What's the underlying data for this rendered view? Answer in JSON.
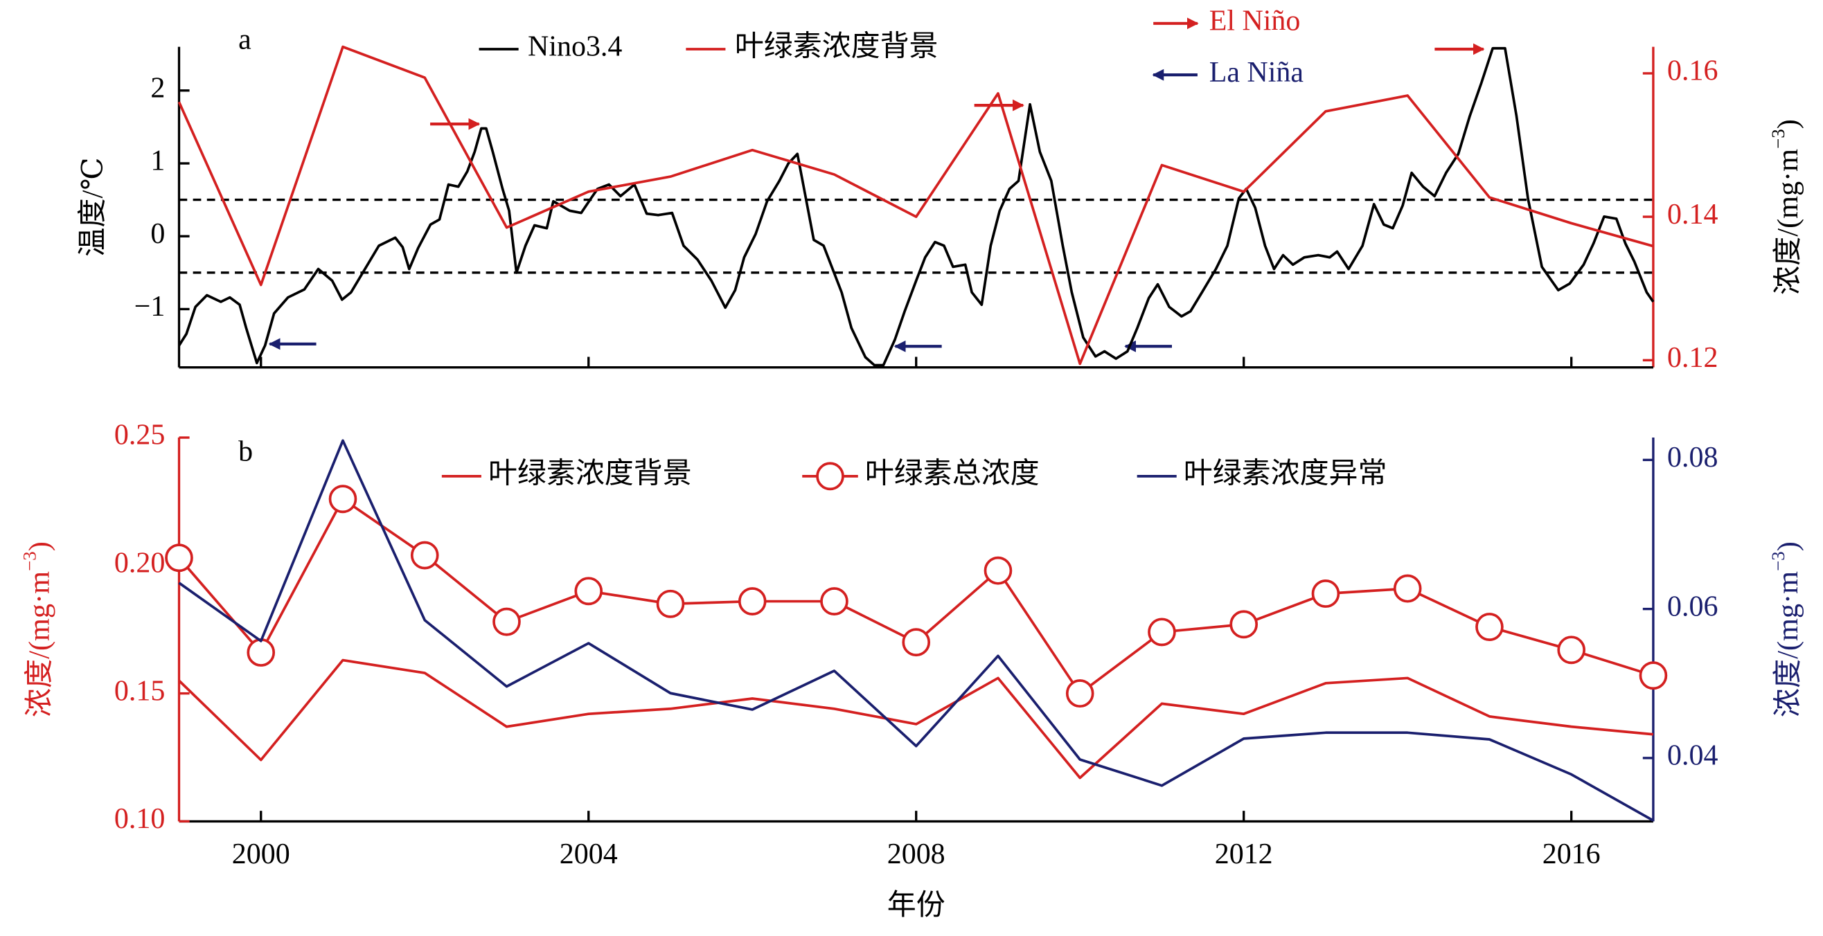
{
  "chart_data": [
    {
      "type": "line",
      "panel_label": "a",
      "ylabel": "温度/℃",
      "y2label": [
        "浓度/(mg·m",
        "−3",
        ")"
      ],
      "axis_colors": {
        "y": "#000000",
        "y2": "#d42020"
      },
      "xlim": [
        1999,
        2017
      ],
      "ylim": [
        -1.8,
        2.6
      ],
      "yticks": [
        {
          "value": -1,
          "label": "−1"
        },
        0,
        1,
        2
      ],
      "y2lim": [
        0.119,
        0.1637
      ],
      "y2ticks": [
        {
          "value": 0.12,
          "label": "0.12"
        },
        {
          "value": 0.14,
          "label": "0.14"
        },
        {
          "value": 0.16,
          "label": "0.16"
        }
      ],
      "reference_lines": [
        0.5,
        -0.5
      ],
      "annotations": [
        {
          "text": "El Niño",
          "color": "#d42020"
        },
        {
          "text": "La Niña",
          "color": "#1a1f6e"
        }
      ],
      "series": [
        {
          "name": "Nino3.4",
          "color": "#000000",
          "axis": "y",
          "x": [
            1999.0,
            1999.09,
            1999.2,
            1999.34,
            1999.51,
            1999.62,
            1999.74,
            1999.82,
            1999.95,
            2000.05,
            2000.16,
            2000.33,
            2000.53,
            2000.7,
            2000.87,
            2000.99,
            2001.1,
            2001.27,
            2001.44,
            2001.64,
            2001.73,
            2001.81,
            2001.92,
            2002.07,
            2002.18,
            2002.29,
            2002.41,
            2002.52,
            2002.61,
            2002.69,
            2002.75,
            2002.83,
            2002.95,
            2003.03,
            2003.12,
            2003.23,
            2003.34,
            2003.49,
            2003.57,
            2003.77,
            2003.91,
            2004.03,
            2004.11,
            2004.25,
            2004.39,
            2004.56,
            2004.71,
            2004.85,
            2005.02,
            2005.16,
            2005.33,
            2005.5,
            2005.67,
            2005.79,
            2005.9,
            2006.04,
            2006.18,
            2006.33,
            2006.44,
            2006.55,
            2006.64,
            2006.75,
            2006.87,
            2006.98,
            2007.09,
            2007.21,
            2007.38,
            2007.49,
            2007.6,
            2007.74,
            2007.86,
            2008.0,
            2008.11,
            2008.23,
            2008.34,
            2008.45,
            2008.6,
            2008.68,
            2008.8,
            2008.91,
            2009.02,
            2009.14,
            2009.25,
            2009.39,
            2009.51,
            2009.65,
            2009.79,
            2009.9,
            2010.04,
            2010.19,
            2010.3,
            2010.44,
            2010.58,
            2010.7,
            2010.84,
            2010.95,
            2011.09,
            2011.24,
            2011.35,
            2011.49,
            2011.66,
            2011.8,
            2011.94,
            2012.03,
            2012.14,
            2012.26,
            2012.37,
            2012.48,
            2012.6,
            2012.74,
            2012.91,
            2013.05,
            2013.14,
            2013.28,
            2013.45,
            2013.59,
            2013.71,
            2013.82,
            2013.94,
            2014.05,
            2014.19,
            2014.33,
            2014.47,
            2014.62,
            2014.76,
            2014.9,
            2015.04,
            2015.19,
            2015.33,
            2015.47,
            2015.64,
            2015.84,
            2015.98,
            2016.15,
            2016.27,
            2016.4,
            2016.55,
            2016.66,
            2016.77,
            2016.92,
            2017.0
          ],
          "values": [
            -1.5,
            -1.34,
            -0.97,
            -0.81,
            -0.9,
            -0.84,
            -0.94,
            -1.26,
            -1.74,
            -1.5,
            -1.06,
            -0.84,
            -0.73,
            -0.45,
            -0.61,
            -0.87,
            -0.77,
            -0.45,
            -0.13,
            -0.02,
            -0.15,
            -0.45,
            -0.16,
            0.16,
            0.23,
            0.71,
            0.68,
            0.89,
            1.16,
            1.48,
            1.48,
            1.16,
            0.65,
            0.35,
            -0.5,
            -0.13,
            0.15,
            0.11,
            0.48,
            0.35,
            0.32,
            0.52,
            0.65,
            0.71,
            0.55,
            0.71,
            0.31,
            0.29,
            0.32,
            -0.13,
            -0.32,
            -0.61,
            -0.98,
            -0.74,
            -0.29,
            0.03,
            0.48,
            0.76,
            1.0,
            1.13,
            0.6,
            -0.05,
            -0.13,
            -0.45,
            -0.77,
            -1.26,
            -1.66,
            -1.77,
            -1.77,
            -1.42,
            -1.03,
            -0.61,
            -0.29,
            -0.08,
            -0.13,
            -0.42,
            -0.39,
            -0.77,
            -0.94,
            -0.13,
            0.35,
            0.65,
            0.76,
            1.81,
            1.16,
            0.76,
            -0.13,
            -0.77,
            -1.39,
            -1.65,
            -1.58,
            -1.68,
            -1.58,
            -1.26,
            -0.85,
            -0.66,
            -0.97,
            -1.1,
            -1.03,
            -0.77,
            -0.45,
            -0.13,
            0.52,
            0.65,
            0.39,
            -0.13,
            -0.45,
            -0.26,
            -0.39,
            -0.29,
            -0.26,
            -0.29,
            -0.21,
            -0.45,
            -0.13,
            0.44,
            0.16,
            0.11,
            0.42,
            0.87,
            0.68,
            0.55,
            0.87,
            1.13,
            1.65,
            2.1,
            2.58,
            2.58,
            1.65,
            0.52,
            -0.42,
            -0.74,
            -0.65,
            -0.39,
            -0.1,
            0.27,
            0.24,
            -0.1,
            -0.35,
            -0.77,
            -0.9
          ]
        },
        {
          "name": "叶绿素浓度背景",
          "color": "#d42020",
          "axis": "y2",
          "x": [
            1999,
            2000,
            2001,
            2002,
            2003,
            2004,
            2005,
            2006,
            2007,
            2008,
            2009,
            2010,
            2011,
            2012,
            2013,
            2014,
            2015,
            2016,
            2017
          ],
          "values": [
            0.156,
            0.1305,
            0.1637,
            0.1594,
            0.1385,
            0.1435,
            0.1456,
            0.1493,
            0.1459,
            0.14,
            0.1572,
            0.1195,
            0.1472,
            0.1435,
            0.1547,
            0.1569,
            0.1427,
            0.1391,
            0.1359
          ]
        }
      ]
    },
    {
      "type": "line",
      "panel_label": "b",
      "xlabel": "年份",
      "ylabel": [
        "浓度/(mg·m",
        "−3",
        ")"
      ],
      "y2label": [
        "浓度/(mg·m",
        "−3",
        ")"
      ],
      "axis_colors": {
        "y": "#d42020",
        "y2": "#1a1f6e"
      },
      "xlim": [
        1999,
        2017
      ],
      "xticks": [
        2000,
        2004,
        2008,
        2012,
        2016
      ],
      "ylim": [
        0.1,
        0.25
      ],
      "yticks": [
        {
          "value": 0.1,
          "label": "0.10"
        },
        0.15,
        {
          "value": 0.2,
          "label": "0.20"
        },
        0.25
      ],
      "y2lim": [
        0.0315,
        0.083
      ],
      "y2ticks": [
        0.04,
        0.06,
        0.08
      ],
      "series": [
        {
          "name": "叶绿素浓度背景",
          "color": "#d42020",
          "axis": "y",
          "x": [
            1999,
            2000,
            2001,
            2002,
            2003,
            2004,
            2005,
            2006,
            2007,
            2008,
            2009,
            2010,
            2011,
            2012,
            2013,
            2014,
            2015,
            2016,
            2017
          ],
          "values": [
            0.155,
            0.124,
            0.163,
            0.158,
            0.137,
            0.142,
            0.144,
            0.148,
            0.144,
            0.138,
            0.156,
            0.117,
            0.146,
            0.142,
            0.154,
            0.156,
            0.141,
            0.137,
            0.134
          ]
        },
        {
          "name": "叶绿素总浓度",
          "color": "#d42020",
          "axis": "y",
          "marker": "circle",
          "x": [
            1999,
            2000,
            2001,
            2002,
            2003,
            2004,
            2005,
            2006,
            2007,
            2008,
            2009,
            2010,
            2011,
            2012,
            2013,
            2014,
            2015,
            2016,
            2017
          ],
          "values": [
            0.203,
            0.166,
            0.226,
            0.204,
            0.178,
            0.19,
            0.185,
            0.186,
            0.186,
            0.17,
            0.198,
            0.15,
            0.174,
            0.177,
            0.189,
            0.191,
            0.176,
            0.167,
            0.157
          ]
        },
        {
          "name": "叶绿素浓度异常",
          "color": "#1a1f6e",
          "axis": "y2",
          "x": [
            1999,
            2000,
            2001,
            2002,
            2003,
            2004,
            2005,
            2006,
            2007,
            2008,
            2009,
            2010,
            2011,
            2012,
            2013,
            2014,
            2015,
            2016,
            2017
          ],
          "values": [
            0.0635,
            0.0557,
            0.0826,
            0.0585,
            0.0496,
            0.0554,
            0.0487,
            0.0465,
            0.0517,
            0.0416,
            0.0537,
            0.0398,
            0.0363,
            0.0426,
            0.0434,
            0.0434,
            0.0425,
            0.0378,
            0.0316
          ]
        }
      ]
    }
  ]
}
